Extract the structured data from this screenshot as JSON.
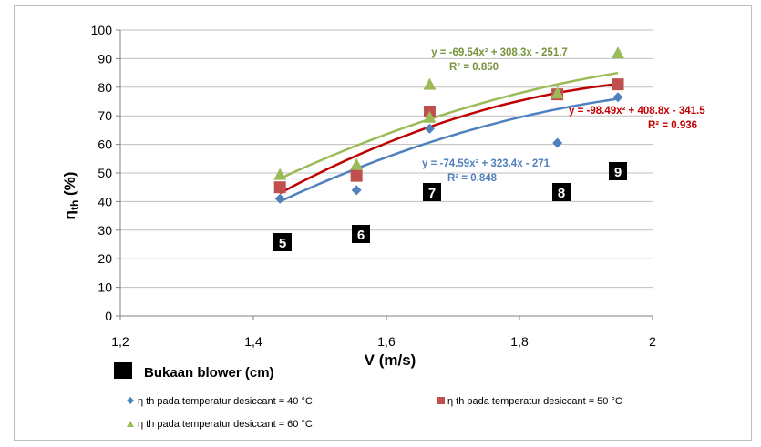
{
  "chart_data": {
    "type": "scatter",
    "xlabel": "V (m/s)",
    "ylabel_main": "η",
    "ylabel_sub": "th",
    "ylabel_unit": " (%)",
    "xlim": [
      1.2,
      2.0
    ],
    "ylim": [
      0,
      100
    ],
    "x_ticks": [
      1.2,
      1.4,
      1.6,
      1.8,
      2.0
    ],
    "x_tick_labels": [
      "1,2",
      "1,4",
      "1,6",
      "1,8",
      "2"
    ],
    "y_ticks": [
      0,
      10,
      20,
      30,
      40,
      50,
      60,
      70,
      80,
      90,
      100
    ],
    "y_tick_labels": [
      "0",
      "10",
      "20",
      "30",
      "40",
      "50",
      "60",
      "70",
      "80",
      "90",
      "100"
    ],
    "grid": "horizontal",
    "series": [
      {
        "name": "η th pada temperatur desiccant = 40 °C",
        "color": "#4f81bd",
        "marker": "diamond",
        "x": [
          1.44,
          1.555,
          1.665,
          1.857,
          1.948
        ],
        "y": [
          41,
          44,
          65.5,
          60.5,
          76.5
        ],
        "trendline": {
          "a": -74.59,
          "b": 323.4,
          "c": -271,
          "x_from": 1.44,
          "x_to": 1.948
        }
      },
      {
        "name": "η th  pada temperatur desiccant = 50 °C",
        "color": "#c0504d",
        "marker": "square",
        "x": [
          1.44,
          1.555,
          1.665,
          1.857,
          1.948
        ],
        "y": [
          45,
          49,
          71.5,
          77.5,
          81
        ],
        "trendline": {
          "a": -98.49,
          "b": 408.8,
          "c": -341.5,
          "x_from": 1.44,
          "x_to": 1.948
        }
      },
      {
        "name": "η th  pada temperatur desiccant = 60 °C",
        "color": "#9bbb59",
        "marker": "triangle",
        "x": [
          1.44,
          1.555,
          1.665,
          1.665,
          1.857,
          1.948
        ],
        "y": [
          49.5,
          53,
          81,
          69.5,
          78,
          92
        ],
        "trendline": {
          "a": -69.54,
          "b": 308.3,
          "c": -251.7,
          "x_from": 1.44,
          "x_to": 1.948
        }
      }
    ],
    "annotations": [
      {
        "text": "y = -69.54x² + 308.3x - 251.7",
        "color": "#77933c"
      },
      {
        "text": "R² = 0.850",
        "color": "#77933c"
      },
      {
        "text": "y = -98.49x² + 408.8x - 341.5",
        "color": "#c00000"
      },
      {
        "text": "R² = 0.936",
        "color": "#c00000"
      },
      {
        "text": "y = -74.59x² + 323.4x - 271",
        "color": "#4f81bd"
      },
      {
        "text": "R² = 0.848",
        "color": "#4f81bd"
      }
    ],
    "opening_labels": [
      "5",
      "6",
      "7",
      "8",
      "9"
    ],
    "opening_legend": "Bukaan blower (cm)",
    "legend_position": "bottom"
  }
}
